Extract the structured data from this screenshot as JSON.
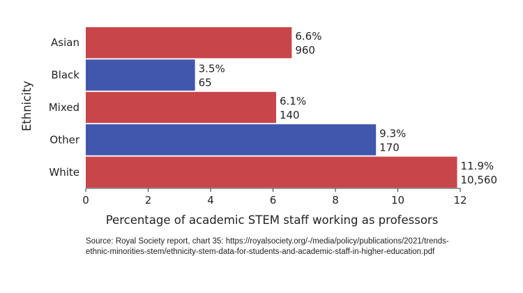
{
  "chart_data": {
    "type": "bar",
    "orientation": "horizontal",
    "title": "",
    "xlabel": "Percentage of academic STEM staff working as professors",
    "ylabel": "Ethnicity",
    "xlim": [
      0,
      12
    ],
    "xticks": [
      "0",
      "2",
      "4",
      "6",
      "8",
      "10",
      "12"
    ],
    "grid": false,
    "categories": [
      "Asian",
      "Black",
      "Mixed",
      "Other",
      "White"
    ],
    "values": [
      6.6,
      3.5,
      6.1,
      9.3,
      11.9
    ],
    "value_labels": [
      "6.6%",
      "3.5%",
      "6.1%",
      "9.3%",
      "11.9%"
    ],
    "count_labels": [
      "960",
      "65",
      "140",
      "170",
      "10,560"
    ],
    "colors": [
      "#c8464a",
      "#4157ad",
      "#c8464a",
      "#4157ad",
      "#c8464a"
    ]
  },
  "source": {
    "line1": "Source: Royal Society report, chart 35: https://royalsociety.org/-/media/policy/publications/2021/trends-",
    "line2": "ethnic-minorities-stem/ethnicity-stem-data-for-students-and-academic-staff-in-higher-education.pdf"
  }
}
